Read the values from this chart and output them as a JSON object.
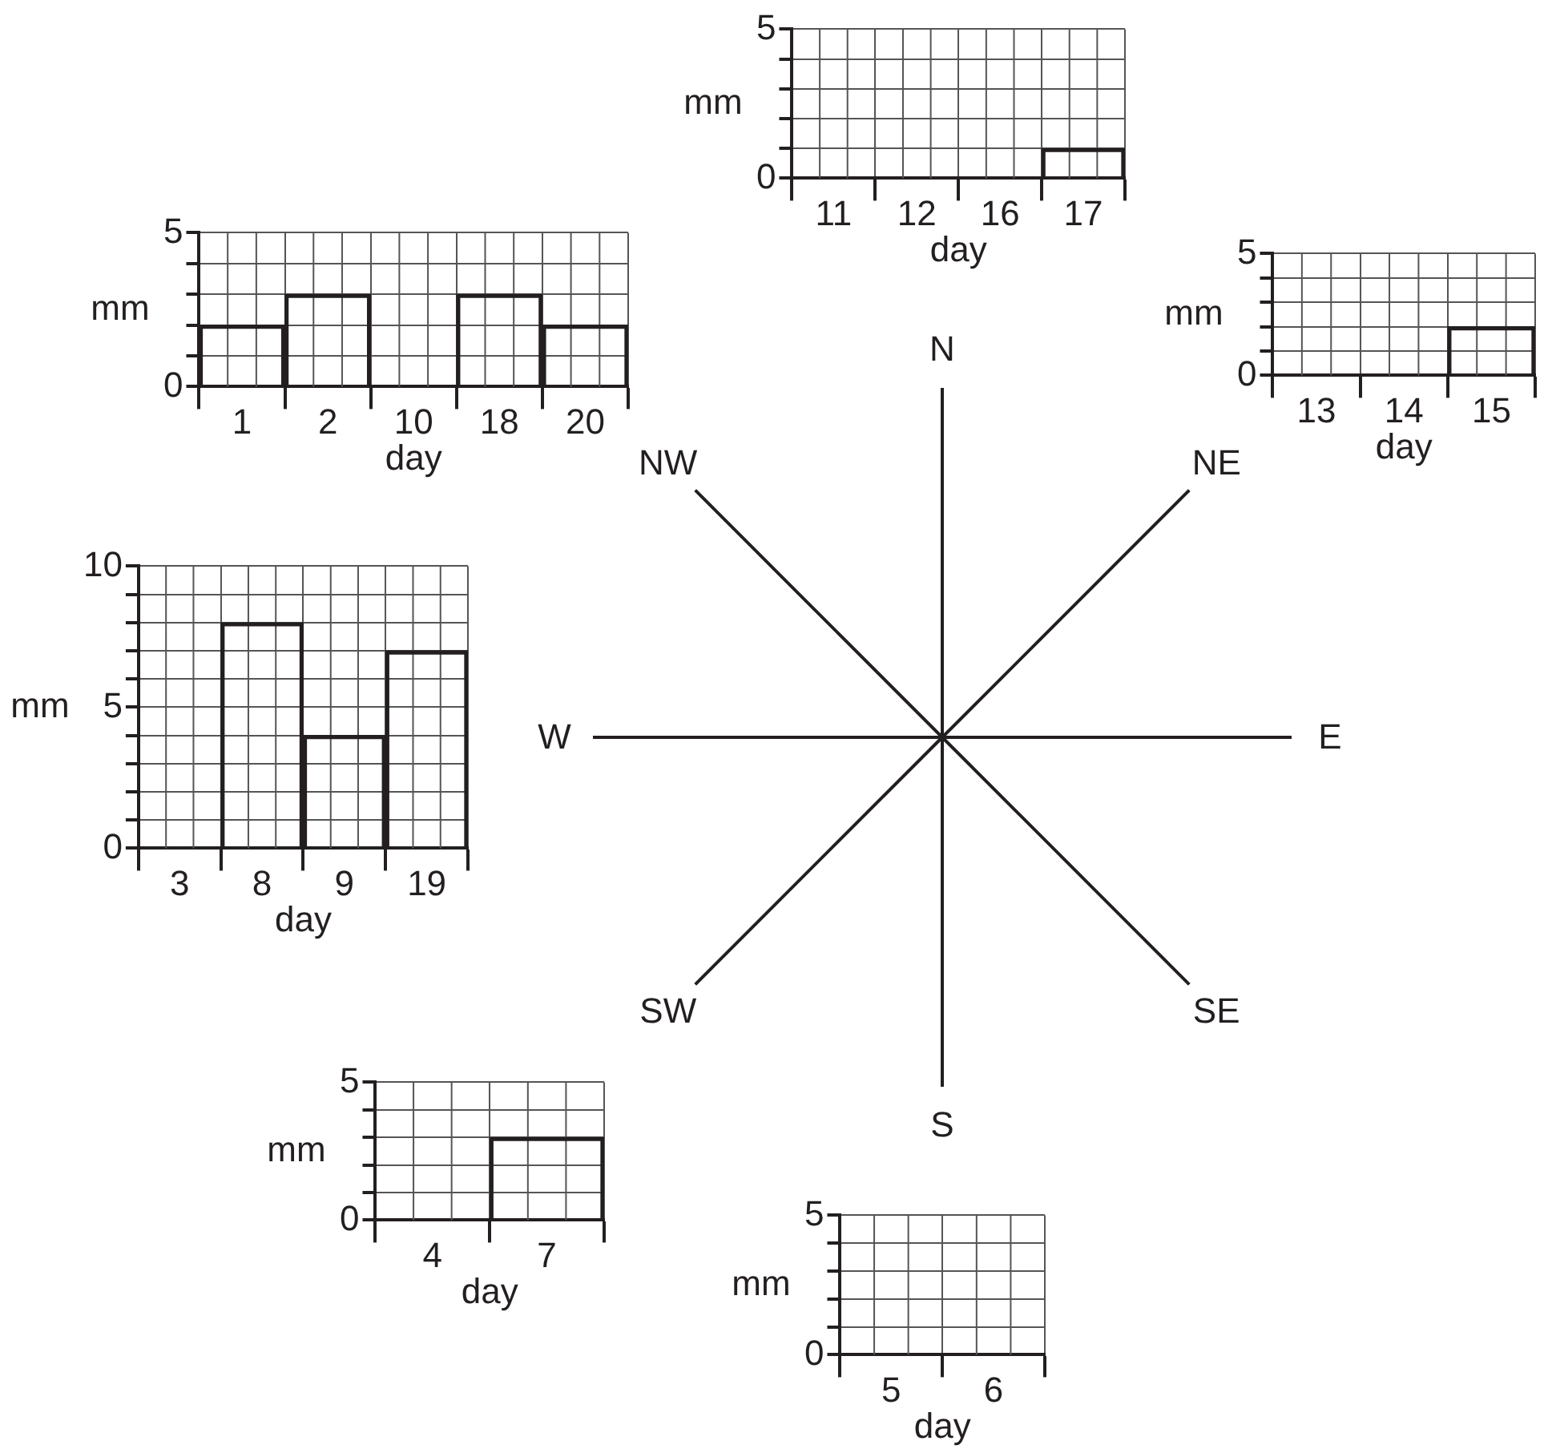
{
  "chart_data": [
    {
      "type": "bar",
      "xlabel": "day",
      "ylabel": "mm",
      "categories": [
        "11",
        "12",
        "16",
        "17"
      ],
      "values": [
        0,
        0,
        0,
        1
      ],
      "color": "#231f20",
      "ylim": [
        0,
        5
      ],
      "yticks": [
        0,
        {
          "value": 1,
          "label": null
        },
        {
          "value": 2,
          "label": null
        },
        {
          "value": 3,
          "label": null
        },
        {
          "value": 4,
          "label": null
        },
        5
      ],
      "grid": true,
      "legend": false
    },
    {
      "type": "bar",
      "xlabel": "day",
      "ylabel": "mm",
      "categories": [
        "1",
        "2",
        "10",
        "18",
        "20"
      ],
      "values": [
        2,
        3,
        0,
        3,
        2
      ],
      "color": "#231f20",
      "ylim": [
        0,
        5
      ],
      "yticks": [
        0,
        {
          "value": 1,
          "label": null
        },
        {
          "value": 2,
          "label": null
        },
        {
          "value": 3,
          "label": null
        },
        {
          "value": 4,
          "label": null
        },
        5
      ],
      "grid": true,
      "legend": false
    },
    {
      "type": "bar",
      "xlabel": "day",
      "ylabel": "mm",
      "categories": [
        "13",
        "14",
        "15"
      ],
      "values": [
        0,
        0,
        2
      ],
      "color": "#231f20",
      "ylim": [
        0,
        5
      ],
      "yticks": [
        0,
        {
          "value": 1,
          "label": null
        },
        {
          "value": 2,
          "label": null
        },
        {
          "value": 3,
          "label": null
        },
        {
          "value": 4,
          "label": null
        },
        5
      ],
      "grid": true,
      "legend": false
    },
    {
      "type": "bar",
      "xlabel": "day",
      "ylabel": "mm",
      "categories": [
        "3",
        "8",
        "9",
        "19"
      ],
      "values": [
        0,
        8,
        4,
        7
      ],
      "color": "#231f20",
      "ylim": [
        0,
        10
      ],
      "yticks": [
        0,
        {
          "value": 1,
          "label": null
        },
        {
          "value": 2,
          "label": null
        },
        {
          "value": 3,
          "label": null
        },
        {
          "value": 4,
          "label": null
        },
        5,
        {
          "value": 6,
          "label": null
        },
        {
          "value": 7,
          "label": null
        },
        {
          "value": 8,
          "label": null
        },
        {
          "value": 9,
          "label": null
        },
        10
      ],
      "grid": true,
      "legend": false
    },
    {
      "type": "bar",
      "xlabel": "day",
      "ylabel": "mm",
      "categories": [
        "4",
        "7"
      ],
      "values": [
        0,
        3
      ],
      "color": "#231f20",
      "ylim": [
        0,
        5
      ],
      "yticks": [
        0,
        {
          "value": 1,
          "label": null
        },
        {
          "value": 2,
          "label": null
        },
        {
          "value": 3,
          "label": null
        },
        {
          "value": 4,
          "label": null
        },
        5
      ],
      "grid": true,
      "legend": false
    },
    {
      "type": "bar",
      "xlabel": "day",
      "ylabel": "mm",
      "categories": [
        "5",
        "6"
      ],
      "values": [
        0,
        0
      ],
      "color": "#231f20",
      "ylim": [
        0,
        5
      ],
      "yticks": [
        0,
        {
          "value": 1,
          "label": null
        },
        {
          "value": 2,
          "label": null
        },
        {
          "value": 3,
          "label": null
        },
        {
          "value": 4,
          "label": null
        },
        5
      ],
      "grid": true,
      "legend": false
    },
    {
      "type": "other",
      "annotations": [
        "N",
        "NE",
        "E",
        "SE",
        "S",
        "SW",
        "W",
        "NW"
      ]
    }
  ]
}
